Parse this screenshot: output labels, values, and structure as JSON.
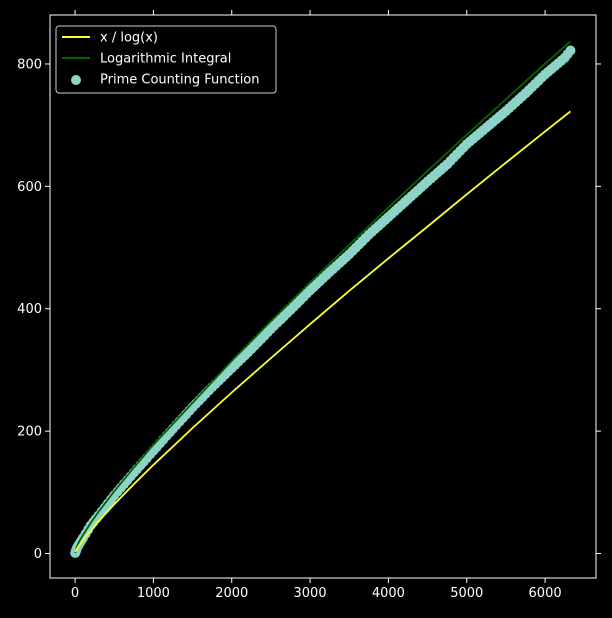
{
  "chart_data": {
    "type": "line",
    "title": "",
    "xlabel": "",
    "ylabel": "",
    "xlim": [
      -320,
      6650
    ],
    "ylim": [
      -40,
      880
    ],
    "xticks": [
      0,
      1000,
      2000,
      3000,
      4000,
      5000,
      6000
    ],
    "yticks": [
      0,
      200,
      400,
      600,
      800
    ],
    "grid": false,
    "legend_position": "top-left",
    "background": "#000000",
    "foreground": "#ffffff",
    "series": [
      {
        "name": "x / log(x)",
        "kind": "line",
        "color": "#ffff33",
        "x": [
          2,
          20,
          50,
          100,
          200,
          300,
          500,
          750,
          1000,
          1500,
          2000,
          2500,
          3000,
          3500,
          4000,
          4500,
          5000,
          5500,
          6000,
          6324
        ],
        "y": [
          2.9,
          6.7,
          12.8,
          21.7,
          37.7,
          52.6,
          80.5,
          113.3,
          144.8,
          205.1,
          263.1,
          319.3,
          374.7,
          429.3,
          482.3,
          534.4,
          587.0,
          638.6,
          689.7,
          722.5
        ]
      },
      {
        "name": "Logarithmic Integral",
        "kind": "line",
        "color": "#006400",
        "x": [
          2,
          20,
          50,
          100,
          200,
          300,
          500,
          750,
          1000,
          1500,
          2000,
          2500,
          3000,
          3500,
          4000,
          4500,
          5000,
          5500,
          6000,
          6324
        ],
        "y": [
          1.0,
          9.9,
          18.9,
          30.1,
          50.2,
          68.3,
          101.8,
          140.3,
          177.6,
          246.2,
          314.8,
          379.7,
          442.8,
          504.5,
          565.4,
          625.4,
          684.3,
          742.3,
          800.4,
          837.0
        ]
      },
      {
        "name": "Prime Counting Function",
        "kind": "scatter",
        "color": "#8dd3c7",
        "x": [
          2,
          10,
          20,
          50,
          100,
          200,
          300,
          500,
          750,
          1000,
          1250,
          1500,
          1750,
          2000,
          2250,
          2500,
          2750,
          3000,
          3250,
          3500,
          3750,
          4000,
          4250,
          4500,
          4750,
          5000,
          5250,
          5500,
          5750,
          6000,
          6250,
          6324
        ],
        "y": [
          1,
          4,
          8,
          15,
          25,
          46,
          62,
          95,
          132,
          168,
          204,
          239,
          272,
          303,
          334,
          367,
          398,
          430,
          460,
          489,
          521,
          550,
          579,
          608,
          636,
          669,
          696,
          723,
          752,
          783,
          810,
          822
        ]
      }
    ]
  }
}
